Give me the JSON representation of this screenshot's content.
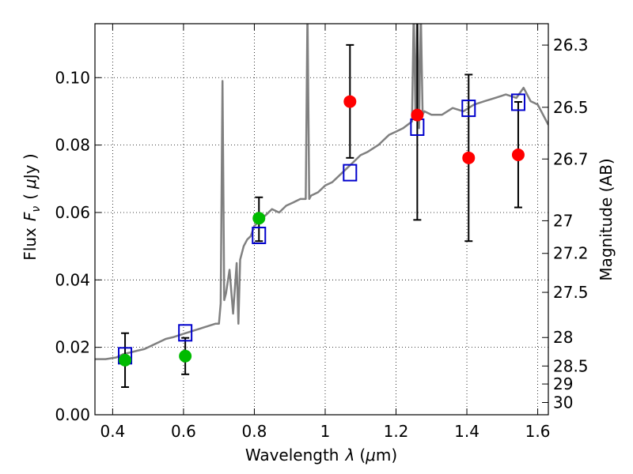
{
  "chart_data": {
    "type": "scatter",
    "xlabel": "Wavelength",
    "xlabel_symbol": "λ",
    "xlabel_unit_open": "(",
    "xlabel_unit_mu": "μ",
    "xlabel_unit_rest": "m)",
    "ylabel": "Flux",
    "ylabel_symbol": "F",
    "ylabel_subscript": "ν",
    "ylabel_unit_open": "(",
    "ylabel_unit_mu": "μ",
    "ylabel_unit_rest": "Jy )",
    "y2label": "Magnitude (AB)",
    "xlim": [
      0.35,
      1.63
    ],
    "ylim": [
      0.0,
      0.116
    ],
    "grid": true,
    "x_ticks": [
      {
        "value": 0.4,
        "label": "0.4"
      },
      {
        "value": 0.6,
        "label": "0.6"
      },
      {
        "value": 0.8,
        "label": "0.8"
      },
      {
        "value": 1.0,
        "label": "1"
      },
      {
        "value": 1.2,
        "label": "1.2"
      },
      {
        "value": 1.4,
        "label": "1.4"
      },
      {
        "value": 1.6,
        "label": "1.6"
      }
    ],
    "y_ticks": [
      {
        "value": 0.0,
        "label": "0.00"
      },
      {
        "value": 0.02,
        "label": "0.02"
      },
      {
        "value": 0.04,
        "label": "0.04"
      },
      {
        "value": 0.06,
        "label": "0.06"
      },
      {
        "value": 0.08,
        "label": "0.08"
      },
      {
        "value": 0.1,
        "label": "0.10"
      }
    ],
    "y2_ticks": [
      {
        "value": 26.3,
        "label": "26.3"
      },
      {
        "value": 26.5,
        "label": "26.5"
      },
      {
        "value": 26.7,
        "label": "26.7"
      },
      {
        "value": 27.0,
        "label": "27"
      },
      {
        "value": 27.2,
        "label": "27.2"
      },
      {
        "value": 27.5,
        "label": "27.5"
      },
      {
        "value": 28.0,
        "label": "28"
      },
      {
        "value": 28.5,
        "label": "28.5"
      },
      {
        "value": 29.0,
        "label": "29"
      },
      {
        "value": 30.0,
        "label": "30"
      }
    ],
    "spectrum": {
      "color": "#808080",
      "x": [
        0.35,
        0.38,
        0.41,
        0.43,
        0.45,
        0.47,
        0.49,
        0.51,
        0.53,
        0.55,
        0.57,
        0.6,
        0.63,
        0.66,
        0.69,
        0.7,
        0.705,
        0.71,
        0.715,
        0.72,
        0.73,
        0.74,
        0.75,
        0.755,
        0.76,
        0.77,
        0.78,
        0.79,
        0.8,
        0.81,
        0.83,
        0.85,
        0.87,
        0.89,
        0.91,
        0.93,
        0.945,
        0.95,
        0.955,
        0.96,
        0.98,
        1.0,
        1.02,
        1.05,
        1.08,
        1.1,
        1.12,
        1.15,
        1.18,
        1.2,
        1.22,
        1.245,
        1.25,
        1.255,
        1.26,
        1.265,
        1.27,
        1.275,
        1.28,
        1.3,
        1.33,
        1.36,
        1.39,
        1.42,
        1.45,
        1.48,
        1.51,
        1.54,
        1.56,
        1.58,
        1.6,
        1.63
      ],
      "y": [
        0.0165,
        0.0165,
        0.017,
        0.018,
        0.0185,
        0.019,
        0.0195,
        0.0205,
        0.0215,
        0.0225,
        0.023,
        0.024,
        0.025,
        0.026,
        0.027,
        0.027,
        0.033,
        0.099,
        0.034,
        0.036,
        0.043,
        0.03,
        0.045,
        0.027,
        0.046,
        0.05,
        0.052,
        0.053,
        0.056,
        0.057,
        0.059,
        0.061,
        0.06,
        0.062,
        0.063,
        0.064,
        0.064,
        0.12,
        0.064,
        0.065,
        0.066,
        0.068,
        0.069,
        0.072,
        0.075,
        0.077,
        0.078,
        0.08,
        0.083,
        0.084,
        0.085,
        0.087,
        0.12,
        0.089,
        0.12,
        0.085,
        0.12,
        0.089,
        0.09,
        0.089,
        0.089,
        0.091,
        0.09,
        0.092,
        0.093,
        0.094,
        0.095,
        0.094,
        0.097,
        0.093,
        0.092,
        0.086
      ]
    },
    "series": [
      {
        "marker": "square-open",
        "color": "#0000cc",
        "points": [
          {
            "x": 0.435,
            "y": 0.0175
          },
          {
            "x": 0.605,
            "y": 0.0243
          },
          {
            "x": 0.813,
            "y": 0.0532
          },
          {
            "x": 1.07,
            "y": 0.0718
          },
          {
            "x": 1.26,
            "y": 0.0853
          },
          {
            "x": 1.405,
            "y": 0.0909
          },
          {
            "x": 1.545,
            "y": 0.0927
          }
        ]
      },
      {
        "marker": "circle",
        "color": "#00bb00",
        "points": [
          {
            "x": 0.435,
            "y": 0.0162,
            "err_low": 0.0082,
            "err_high": 0.0242
          },
          {
            "x": 0.605,
            "y": 0.0174,
            "err_low": 0.012,
            "err_high": 0.0228
          },
          {
            "x": 0.813,
            "y": 0.0583,
            "err_low": 0.0515,
            "err_high": 0.0645
          }
        ]
      },
      {
        "marker": "circle",
        "color": "#ff0000",
        "points": [
          {
            "x": 1.07,
            "y": 0.0929,
            "err_low": 0.0762,
            "err_high": 0.1097
          },
          {
            "x": 1.26,
            "y": 0.0889,
            "err_low": 0.0578,
            "err_high": 0.12
          },
          {
            "x": 1.405,
            "y": 0.0762,
            "err_low": 0.0515,
            "err_high": 0.1009
          },
          {
            "x": 1.545,
            "y": 0.0771,
            "err_low": 0.0615,
            "err_high": 0.0928
          }
        ]
      }
    ]
  }
}
